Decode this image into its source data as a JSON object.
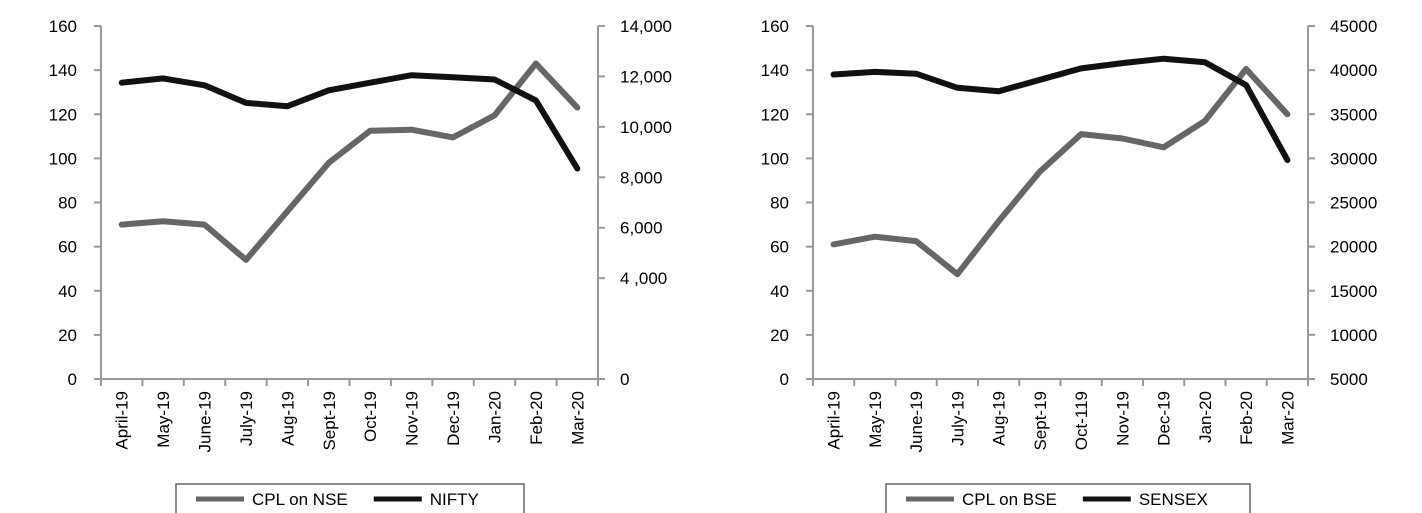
{
  "colors": {
    "primary_series": "#666666",
    "secondary_series": "#111111",
    "axis": "#999999"
  },
  "chart_data": [
    {
      "type": "line",
      "title": "",
      "xlabel": "",
      "ylabel": "",
      "categories": [
        "April-19",
        "May-19",
        "June-19",
        "July-19",
        "Aug-19",
        "Sept-19",
        "Oct-19",
        "Nov-19",
        "Dec-19",
        "Jan-20",
        "Feb-20",
        "Mar-20"
      ],
      "y_left": {
        "ylim": [
          0,
          160
        ],
        "ticks": [
          "0",
          "20",
          "40",
          "60",
          "80",
          "100",
          "120",
          "140",
          "160"
        ]
      },
      "y_right": {
        "ylim": [
          0,
          14000
        ],
        "ticks": [
          "0",
          "4 ,000",
          "6,000",
          "8,000",
          "10,000",
          "12,000",
          "14,000"
        ],
        "tick_values": [
          0,
          4000,
          6000,
          8000,
          10000,
          12000,
          14000
        ]
      },
      "series": [
        {
          "name": "CPL on NSE",
          "axis": "left",
          "color": "#666666",
          "values": [
            70,
            71.5,
            70,
            54,
            76,
            98,
            112.5,
            113,
            109.5,
            119.5,
            143,
            123
          ]
        },
        {
          "name": "NIFTY",
          "axis": "right",
          "color": "#111111",
          "values": [
            11750,
            11920,
            11650,
            10950,
            10820,
            11450,
            11750,
            12050,
            11970,
            11880,
            11050,
            8350
          ]
        }
      ],
      "legend": "bottom",
      "grid": false
    },
    {
      "type": "line",
      "title": "",
      "xlabel": "",
      "ylabel": "",
      "categories": [
        "April-19",
        "May-19",
        "June-19",
        "July-19",
        "Aug-19",
        "Sept-19",
        "Oct-119",
        "Nov-19",
        "Dec-19",
        "Jan-20",
        "Feb-20",
        "Mar-20"
      ],
      "y_left": {
        "ylim": [
          0,
          160
        ],
        "ticks": [
          "0",
          "20",
          "40",
          "60",
          "80",
          "100",
          "120",
          "140",
          "160"
        ]
      },
      "y_right": {
        "ylim": [
          5000,
          45000
        ],
        "ticks": [
          "5000",
          "10000",
          "15000",
          "20000",
          "25000",
          "30000",
          "35000",
          "40000",
          "45000"
        ],
        "tick_values": [
          5000,
          10000,
          15000,
          20000,
          25000,
          30000,
          35000,
          40000,
          45000
        ]
      },
      "series": [
        {
          "name": "CPL on BSE",
          "axis": "left",
          "color": "#666666",
          "values": [
            61,
            64.5,
            62.5,
            47.5,
            71.5,
            94,
            111,
            109,
            105,
            117,
            140.5,
            120
          ]
        },
        {
          "name": "SENSEX",
          "axis": "right",
          "color": "#111111",
          "values": [
            39500,
            39800,
            39600,
            38000,
            37600,
            38900,
            40200,
            40800,
            41300,
            40900,
            38300,
            29800
          ]
        }
      ],
      "legend": "bottom",
      "grid": false
    }
  ]
}
